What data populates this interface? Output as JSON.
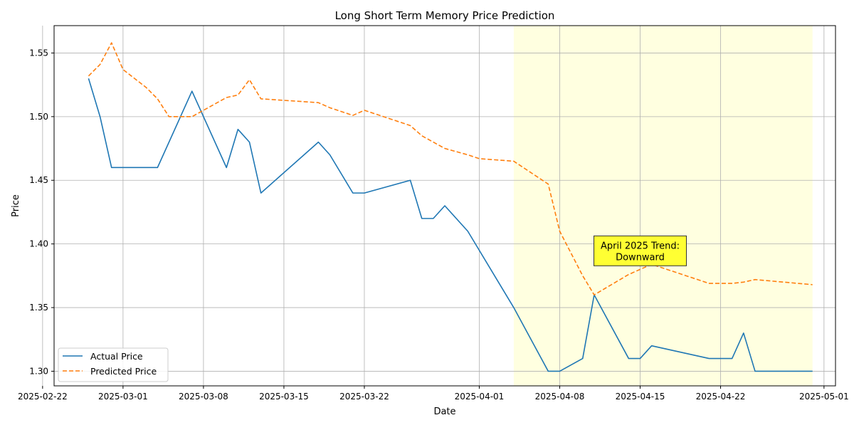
{
  "chart_data": {
    "type": "line",
    "title": "Long Short Term Memory Price Prediction",
    "xlabel": "Date",
    "ylabel": "Price",
    "xlim": [
      "2025-02-23",
      "2025-05-02"
    ],
    "ylim": [
      1.2885,
      1.5715
    ],
    "x_ticks": [
      "2025-02-22",
      "2025-03-01",
      "2025-03-08",
      "2025-03-15",
      "2025-03-22",
      "2025-04-01",
      "2025-04-08",
      "2025-04-15",
      "2025-04-22",
      "2025-05-01"
    ],
    "y_ticks": [
      "1.30",
      "1.35",
      "1.40",
      "1.45",
      "1.50",
      "1.55"
    ],
    "grid": true,
    "legend_position": "lower-left",
    "highlight": {
      "x_start": "2025-04-04",
      "x_end": "2025-04-30",
      "color": "#ffffe0",
      "label_line1": "April 2025 Trend:",
      "label_line2": "Downward",
      "label_date": "2025-04-15",
      "label_value": 1.394,
      "label_bg": "#ffff33"
    },
    "series": [
      {
        "name": "Actual Price",
        "color": "#1f77b4",
        "style": "solid",
        "points": [
          [
            "2025-02-26",
            1.53
          ],
          [
            "2025-02-27",
            1.5
          ],
          [
            "2025-02-28",
            1.46
          ],
          [
            "2025-03-04",
            1.46
          ],
          [
            "2025-03-07",
            1.52
          ],
          [
            "2025-03-10",
            1.46
          ],
          [
            "2025-03-11",
            1.49
          ],
          [
            "2025-03-12",
            1.48
          ],
          [
            "2025-03-13",
            1.44
          ],
          [
            "2025-03-18",
            1.48
          ],
          [
            "2025-03-19",
            1.47
          ],
          [
            "2025-03-21",
            1.44
          ],
          [
            "2025-03-22",
            1.44
          ],
          [
            "2025-03-26",
            1.45
          ],
          [
            "2025-03-27",
            1.42
          ],
          [
            "2025-03-28",
            1.42
          ],
          [
            "2025-03-29",
            1.43
          ],
          [
            "2025-03-31",
            1.41
          ],
          [
            "2025-04-04",
            1.35
          ],
          [
            "2025-04-07",
            1.3
          ],
          [
            "2025-04-08",
            1.3
          ],
          [
            "2025-04-10",
            1.31
          ],
          [
            "2025-04-11",
            1.36
          ],
          [
            "2025-04-14",
            1.31
          ],
          [
            "2025-04-15",
            1.31
          ],
          [
            "2025-04-16",
            1.32
          ],
          [
            "2025-04-21",
            1.31
          ],
          [
            "2025-04-23",
            1.31
          ],
          [
            "2025-04-24",
            1.33
          ],
          [
            "2025-04-25",
            1.3
          ],
          [
            "2025-04-30",
            1.3
          ]
        ]
      },
      {
        "name": "Predicted Price",
        "color": "#ff7f0e",
        "style": "dashed",
        "points": [
          [
            "2025-02-26",
            1.532
          ],
          [
            "2025-02-27",
            1.541
          ],
          [
            "2025-02-28",
            1.558
          ],
          [
            "2025-03-01",
            1.537
          ],
          [
            "2025-03-03",
            1.523
          ],
          [
            "2025-03-04",
            1.514
          ],
          [
            "2025-03-05",
            1.5
          ],
          [
            "2025-03-07",
            1.5
          ],
          [
            "2025-03-08",
            1.505
          ],
          [
            "2025-03-10",
            1.515
          ],
          [
            "2025-03-11",
            1.517
          ],
          [
            "2025-03-12",
            1.529
          ],
          [
            "2025-03-13",
            1.514
          ],
          [
            "2025-03-18",
            1.511
          ],
          [
            "2025-03-19",
            1.507
          ],
          [
            "2025-03-21",
            1.501
          ],
          [
            "2025-03-22",
            1.505
          ],
          [
            "2025-03-26",
            1.493
          ],
          [
            "2025-03-27",
            1.485
          ],
          [
            "2025-03-29",
            1.475
          ],
          [
            "2025-03-31",
            1.47
          ],
          [
            "2025-04-01",
            1.467
          ],
          [
            "2025-04-04",
            1.465
          ],
          [
            "2025-04-07",
            1.447
          ],
          [
            "2025-04-08",
            1.41
          ],
          [
            "2025-04-10",
            1.375
          ],
          [
            "2025-04-11",
            1.36
          ],
          [
            "2025-04-14",
            1.376
          ],
          [
            "2025-04-16",
            1.384
          ],
          [
            "2025-04-21",
            1.369
          ],
          [
            "2025-04-23",
            1.369
          ],
          [
            "2025-04-24",
            1.37
          ],
          [
            "2025-04-25",
            1.372
          ],
          [
            "2025-04-30",
            1.368
          ]
        ]
      }
    ]
  }
}
